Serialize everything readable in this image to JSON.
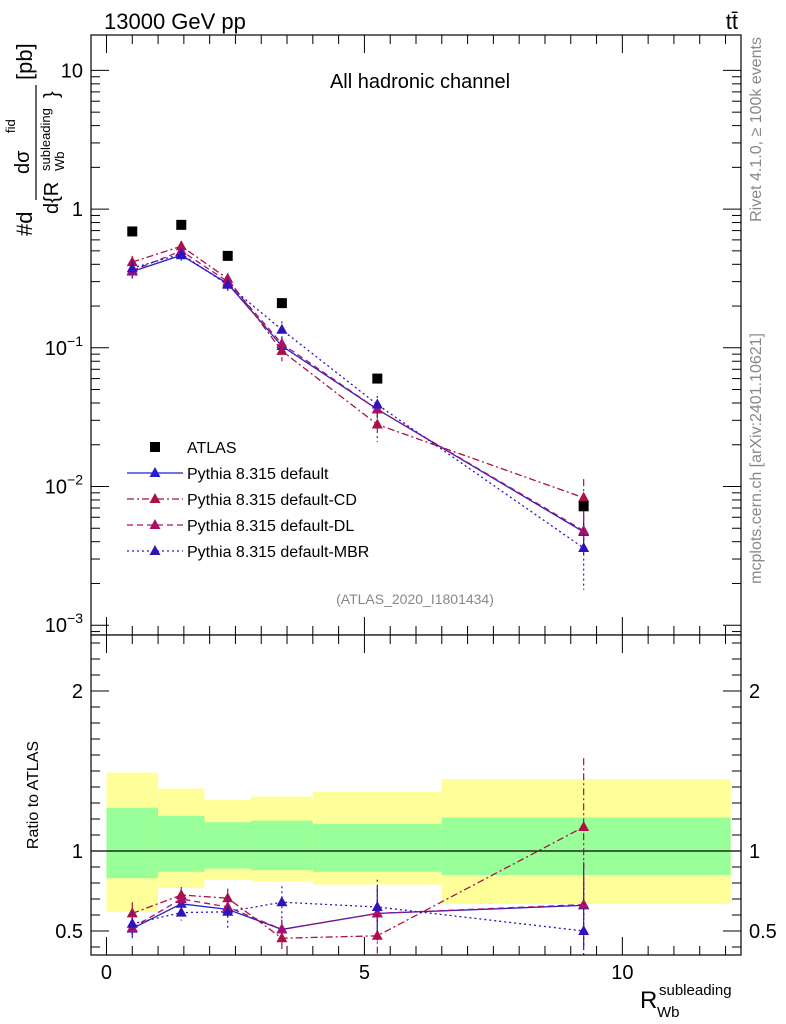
{
  "header": {
    "left": "13000 GeV pp",
    "right": "tt̄"
  },
  "side_text": {
    "rivet": "Rivet 4.1.0, ≥ 100k events",
    "mcplots": "mcplots.cern.ch [arXiv:2401.10621]"
  },
  "chart_data": [
    {
      "type": "scatter",
      "title": "All hadronic channel",
      "analysis_id": "(ATLAS_2020_I1801434)",
      "ylabel": "#d dσ^{fid} / d{R_{Wb}^{subleading}} [pb]",
      "ylabel_parts": {
        "hash_d": "#d",
        "numerator": "dσ",
        "numerator_sup": "fid",
        "denominator": "d{R",
        "den_sub": "Wb",
        "den_sup": "subleading",
        "den_close": "}",
        "unit": "[pb]"
      },
      "yscale": "log",
      "ylim": [
        0.00085,
        18
      ],
      "xlim": [
        -0.3,
        12.3
      ],
      "y_ticks": [
        {
          "value": 0.001,
          "base": "10",
          "exp": "−3"
        },
        {
          "value": 0.01,
          "base": "10",
          "exp": "−2"
        },
        {
          "value": 0.1,
          "base": "10",
          "exp": "−1"
        },
        {
          "value": 1,
          "base": "1",
          "exp": ""
        },
        {
          "value": 10,
          "base": "10",
          "exp": ""
        }
      ],
      "x_bins": [
        [
          0,
          1
        ],
        [
          1,
          1.9
        ],
        [
          1.9,
          2.8
        ],
        [
          2.8,
          4.0
        ],
        [
          4.0,
          6.5
        ],
        [
          6.5,
          12.1
        ]
      ],
      "x_points": [
        0.5,
        1.45,
        2.35,
        3.4,
        5.25,
        9.25
      ],
      "legend_position": "lower-left",
      "series": [
        {
          "name": "ATLAS",
          "style": "data",
          "color": "#000000",
          "values": [
            0.69,
            0.77,
            0.46,
            0.21,
            0.06,
            0.0072
          ]
        },
        {
          "name": "Pythia 8.315 default",
          "style": "solid",
          "color": "#2222cc",
          "values": [
            0.355,
            0.465,
            0.29,
            0.103,
            0.036,
            0.0047
          ],
          "errors": [
            0.04,
            0.04,
            0.03,
            0.012,
            0.005,
            0.0015
          ]
        },
        {
          "name": "Pythia 8.315 default-CD",
          "style": "dashdot",
          "color": "#aa1144",
          "values": [
            0.415,
            0.54,
            0.315,
            0.095,
            0.028,
            0.0083
          ],
          "errors": [
            0.045,
            0.045,
            0.03,
            0.015,
            0.007,
            0.003
          ]
        },
        {
          "name": "Pythia 8.315 default-DL",
          "style": "dashed",
          "color": "#aa1166",
          "values": [
            0.36,
            0.5,
            0.3,
            0.107,
            0.036,
            0.0048
          ],
          "errors": [
            0.04,
            0.04,
            0.03,
            0.013,
            0.006,
            0.0015
          ]
        },
        {
          "name": "Pythia 8.315 default-MBR",
          "style": "dotted",
          "color": "#3311bb",
          "values": [
            0.375,
            0.475,
            0.285,
            0.135,
            0.039,
            0.0036
          ],
          "errors": [
            0.045,
            0.04,
            0.03,
            0.02,
            0.006,
            0.0018
          ]
        }
      ]
    },
    {
      "type": "scatter",
      "ylabel": "Ratio to ATLAS",
      "xlabel": "R_{Wb}^{subleading}",
      "xlabel_parts": {
        "base": "R",
        "sub": "Wb",
        "sup": "subleading"
      },
      "ylim": [
        0.35,
        2.35
      ],
      "xlim": [
        -0.3,
        12.3
      ],
      "y_tick_labels": [
        {
          "value": 0.5,
          "label": "0.5"
        },
        {
          "value": 1,
          "label": "1"
        },
        {
          "value": 2,
          "label": "2"
        }
      ],
      "x_tick_labels": [
        {
          "value": 0,
          "label": "0"
        },
        {
          "value": 5,
          "label": "5"
        },
        {
          "value": 10,
          "label": "10"
        }
      ],
      "bands": {
        "inner": [
          [
            0.83,
            1.27
          ],
          [
            0.87,
            1.22
          ],
          [
            0.89,
            1.18
          ],
          [
            0.88,
            1.19
          ],
          [
            0.87,
            1.17
          ],
          [
            0.85,
            1.21
          ]
        ],
        "outer": [
          [
            0.62,
            1.49
          ],
          [
            0.77,
            1.39
          ],
          [
            0.82,
            1.32
          ],
          [
            0.81,
            1.34
          ],
          [
            0.79,
            1.37
          ],
          [
            0.67,
            1.45
          ]
        ]
      },
      "ratios": [
        {
          "name": "Pythia 8.315 default",
          "values": [
            0.515,
            0.67,
            0.635,
            0.51,
            0.61,
            0.66
          ],
          "errors": [
            0.06,
            0.05,
            0.05,
            0.06,
            0.17,
            0.27
          ]
        },
        {
          "name": "Pythia 8.315 default-CD",
          "values": [
            0.61,
            0.725,
            0.705,
            0.455,
            0.47,
            1.15
          ],
          "errors": [
            0.07,
            0.05,
            0.06,
            0.07,
            0.12,
            0.43
          ]
        },
        {
          "name": "Pythia 8.315 default-DL",
          "values": [
            0.52,
            0.7,
            0.65,
            0.51,
            0.61,
            0.665
          ],
          "errors": [
            0.06,
            0.05,
            0.06,
            0.06,
            0.16,
            0.26
          ]
        },
        {
          "name": "Pythia 8.315 default-MBR",
          "values": [
            0.545,
            0.615,
            0.62,
            0.68,
            0.65,
            0.5
          ],
          "errors": [
            0.07,
            0.05,
            0.1,
            0.1,
            0.17,
            0.3
          ]
        }
      ]
    }
  ]
}
